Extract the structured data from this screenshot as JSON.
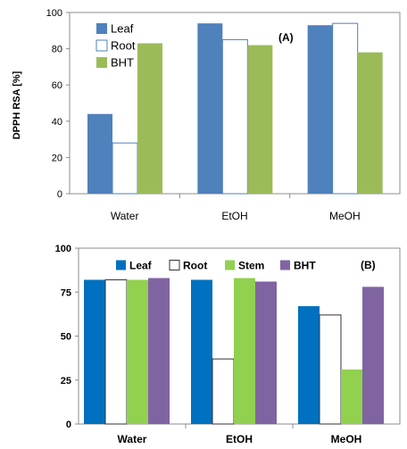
{
  "chart_data": [
    {
      "type": "bar",
      "panel_label": "(A)",
      "ylabel": "DPPH RSA [%]",
      "ylim": [
        0,
        100
      ],
      "yticks": [
        0,
        20,
        40,
        60,
        80,
        100
      ],
      "categories": [
        "Water",
        "EtOH",
        "MeOH"
      ],
      "legend_position": "top-left",
      "grid": false,
      "series": [
        {
          "name": "Leaf",
          "color": "#4f81bd",
          "values": [
            44,
            94,
            93
          ]
        },
        {
          "name": "Root",
          "color": "#ffffff",
          "stroke": "#4f81bd",
          "values": [
            28,
            85,
            94
          ]
        },
        {
          "name": "BHT",
          "color": "#9bbb59",
          "values": [
            83,
            82,
            78
          ]
        }
      ]
    },
    {
      "type": "bar",
      "panel_label": "(B)",
      "ylabel": "",
      "ylim": [
        0,
        100
      ],
      "yticks": [
        0,
        25,
        50,
        75,
        100
      ],
      "categories": [
        "Water",
        "EtOH",
        "MeOH"
      ],
      "legend_position": "top",
      "grid": false,
      "series": [
        {
          "name": "Leaf",
          "color": "#0070c0",
          "values": [
            82,
            82,
            67
          ]
        },
        {
          "name": "Root",
          "color": "#ffffff",
          "stroke": "#333333",
          "values": [
            82,
            37,
            62
          ]
        },
        {
          "name": "Stem",
          "color": "#92d050",
          "values": [
            82,
            83,
            31
          ]
        },
        {
          "name": "BHT",
          "color": "#8064a2",
          "values": [
            83,
            81,
            78
          ]
        }
      ]
    }
  ]
}
